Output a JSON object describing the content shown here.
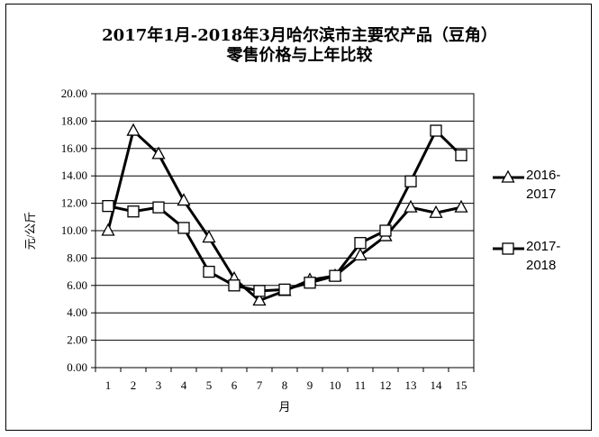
{
  "chart_data": {
    "type": "line",
    "title_line1": "2017年1月-2018年3月哈尔滨市主要农产品（豆角）",
    "title_line2": "零售价格与上年比较",
    "xlabel": "月",
    "ylabel": "元/公斤",
    "categories": [
      "1",
      "2",
      "3",
      "4",
      "5",
      "6",
      "7",
      "8",
      "9",
      "10",
      "11",
      "12",
      "13",
      "14",
      "15"
    ],
    "y_ticks": [
      "0.00",
      "2.00",
      "4.00",
      "6.00",
      "8.00",
      "10.00",
      "12.00",
      "14.00",
      "16.00",
      "18.00",
      "20.00"
    ],
    "ylim": [
      0,
      20
    ],
    "grid": true,
    "legend_position": "right",
    "series": [
      {
        "name_line1": "2016-",
        "name_line2": "2017",
        "marker": "triangle",
        "values": [
          10.0,
          17.3,
          15.6,
          12.2,
          9.5,
          6.5,
          4.9,
          5.6,
          6.4,
          6.7,
          8.2,
          9.6,
          11.7,
          11.3,
          11.7
        ]
      },
      {
        "name_line1": "2017-",
        "name_line2": "2018",
        "marker": "square",
        "values": [
          11.8,
          11.4,
          11.7,
          10.2,
          7.0,
          6.0,
          5.6,
          5.7,
          6.2,
          6.7,
          9.1,
          10.0,
          13.6,
          17.3,
          15.5
        ]
      }
    ],
    "colors": {
      "line": "#000000",
      "grid": "#000000",
      "marker_fill": "#ffffff"
    }
  }
}
